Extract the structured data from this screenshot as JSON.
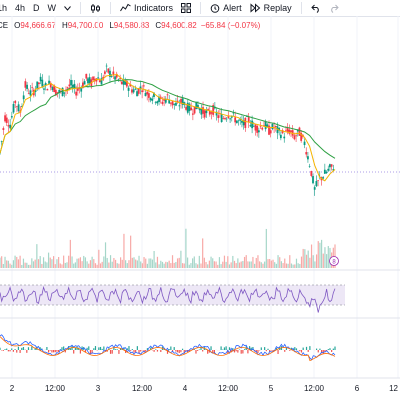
{
  "toolbar": {
    "timeframes": [
      "1h",
      "4h",
      "D",
      "W"
    ],
    "indicators_label": "Indicators",
    "alert_label": "Alert",
    "replay_label": "Replay"
  },
  "legend": {
    "symbol_suffix": "CE",
    "open_label": "O",
    "open_value": "94,666.67",
    "high_label": "H",
    "high_value": "94,700.00",
    "low_label": "L",
    "low_value": "94,580.83",
    "close_label": "C",
    "close_value": "94,600.82",
    "change": "−65.84 (−0.07%)"
  },
  "volume_badge": "8",
  "x_axis": {
    "ticks": [
      "2",
      "12:00",
      "3",
      "12:00",
      "4",
      "12:00",
      "5",
      "12:00",
      "6",
      "12"
    ]
  },
  "colors": {
    "up": "#089981",
    "down": "#f23645",
    "ma_fast": "#f5b400",
    "ma_slow": "#2ea043",
    "price_line": "#5b3fd0",
    "rsi_band": "#ede7f6"
  },
  "chart_data": {
    "type": "line",
    "note_series": "approximate price path read from the candlestick chart; values are relative (no price axis visible)",
    "x": [
      0,
      1,
      2,
      3,
      4,
      5,
      6,
      7,
      8,
      9,
      10,
      11,
      12,
      13,
      14,
      15,
      16,
      17,
      18,
      19,
      20,
      21,
      22,
      23,
      24,
      25,
      26,
      27,
      28,
      29,
      30,
      31,
      32,
      33,
      34,
      35,
      36,
      37,
      38,
      39,
      40,
      41,
      42,
      43,
      44,
      45,
      46,
      47,
      48,
      49,
      50,
      51,
      52,
      53,
      54,
      55,
      56,
      57,
      58,
      59,
      60,
      61,
      62,
      63,
      64,
      65,
      66
    ],
    "series": [
      {
        "values": [
          20,
          55,
          48,
          70,
          60,
          85,
          78,
          82,
          90,
          84,
          88,
          80,
          78,
          82,
          86,
          80,
          84,
          92,
          88,
          94,
          90,
          100,
          96,
          92,
          88,
          86,
          82,
          80,
          84,
          78,
          75,
          72,
          70,
          74,
          68,
          66,
          70,
          64,
          62,
          66,
          60,
          58,
          62,
          56,
          54,
          58,
          55,
          50,
          48,
          52,
          46,
          44,
          48,
          42,
          45,
          40,
          38,
          42,
          36,
          40,
          30,
          10,
          -15,
          -5,
          0,
          5,
          8
        ]
      }
    ],
    "ylim": [
      -30,
      110
    ]
  }
}
